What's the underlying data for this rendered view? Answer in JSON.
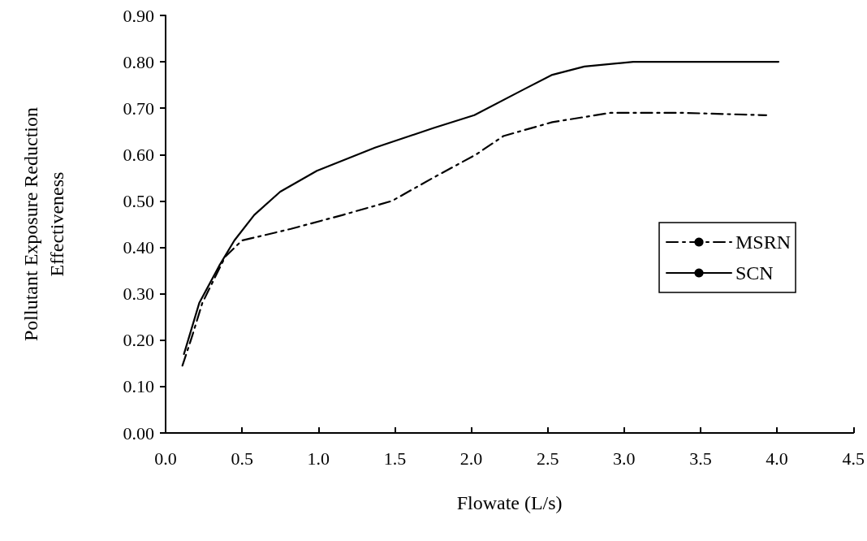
{
  "chart_data": {
    "type": "line",
    "xlabel": "Flowate (L/s)",
    "ylabel": "Pollutant Exposure Reduction Effectiveness",
    "xlim": [
      0,
      4.5
    ],
    "xticks": [
      {
        "value": 0,
        "label": "0.0"
      },
      0.5,
      {
        "value": 1,
        "label": "1.0"
      },
      1.5,
      {
        "value": 2,
        "label": "2.0"
      },
      2.5,
      {
        "value": 3,
        "label": "3.0"
      },
      3.5,
      {
        "value": 4,
        "label": "4.0"
      },
      4.5
    ],
    "ylim": [
      0,
      0.9
    ],
    "yticks": [
      {
        "value": 0,
        "label": "0.00"
      },
      {
        "value": 0.1,
        "label": "0.10"
      },
      {
        "value": 0.2,
        "label": "0.20"
      },
      {
        "value": 0.3,
        "label": "0.30"
      },
      {
        "value": 0.4,
        "label": "0.40"
      },
      {
        "value": 0.5,
        "label": "0.50"
      },
      {
        "value": 0.6,
        "label": "0.60"
      },
      {
        "value": 0.7,
        "label": "0.70"
      },
      {
        "value": 0.8,
        "label": "0.80"
      },
      {
        "value": 0.9,
        "label": "0.90"
      }
    ],
    "grid": false,
    "legend": "right",
    "marker": "none",
    "series": [
      {
        "name": "MSRN",
        "color": "#000000",
        "line_style": "dashdot",
        "x": [
          0.11,
          0.17,
          0.24,
          0.39,
          0.5,
          0.63,
          0.82,
          1.16,
          1.48,
          1.75,
          2.03,
          2.21,
          2.53,
          2.91,
          3.38,
          3.93
        ],
        "values": [
          0.145,
          0.205,
          0.28,
          0.38,
          0.415,
          0.425,
          0.44,
          0.47,
          0.5,
          0.55,
          0.6,
          0.64,
          0.67,
          0.69,
          0.69,
          0.685
        ]
      },
      {
        "name": "SCN",
        "color": "#000000",
        "line_style": "solid",
        "x": [
          0.12,
          0.22,
          0.35,
          0.45,
          0.58,
          0.75,
          0.99,
          1.37,
          1.75,
          2.02,
          2.34,
          2.53,
          2.74,
          3.06,
          4.01
        ],
        "values": [
          0.17,
          0.28,
          0.36,
          0.415,
          0.47,
          0.52,
          0.565,
          0.615,
          0.657,
          0.685,
          0.74,
          0.772,
          0.79,
          0.8,
          0.8
        ]
      }
    ]
  }
}
